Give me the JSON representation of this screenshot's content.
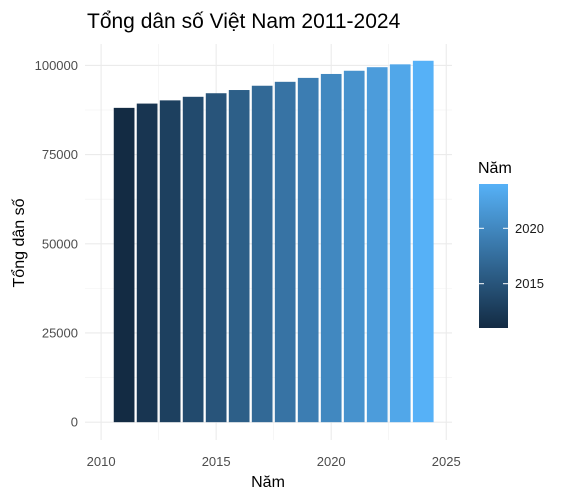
{
  "chart_data": {
    "type": "bar",
    "title": "Tổng dân số Việt Nam 2011-2024",
    "xlabel": "Năm",
    "ylabel": "Tổng dân số",
    "x": [
      2011,
      2012,
      2013,
      2014,
      2015,
      2016,
      2017,
      2018,
      2019,
      2020,
      2021,
      2022,
      2023,
      2024
    ],
    "values": [
      88100,
      89300,
      90200,
      91200,
      92200,
      93100,
      94300,
      95400,
      96500,
      97600,
      98500,
      99500,
      100300,
      101300
    ],
    "xlim": [
      2010,
      2025
    ],
    "ylim": [
      0,
      100000
    ],
    "xticks": [
      "2010",
      "2015",
      "2020",
      "2025"
    ],
    "yticks": [
      "0",
      "25000",
      "50000",
      "75000",
      "100000"
    ],
    "grid": true,
    "legend": {
      "title": "Năm",
      "placement": "right",
      "type": "colorbar",
      "ticks": [
        "2015",
        "2020"
      ],
      "color_low": "#132b43",
      "color_high": "#56b1f7"
    }
  }
}
